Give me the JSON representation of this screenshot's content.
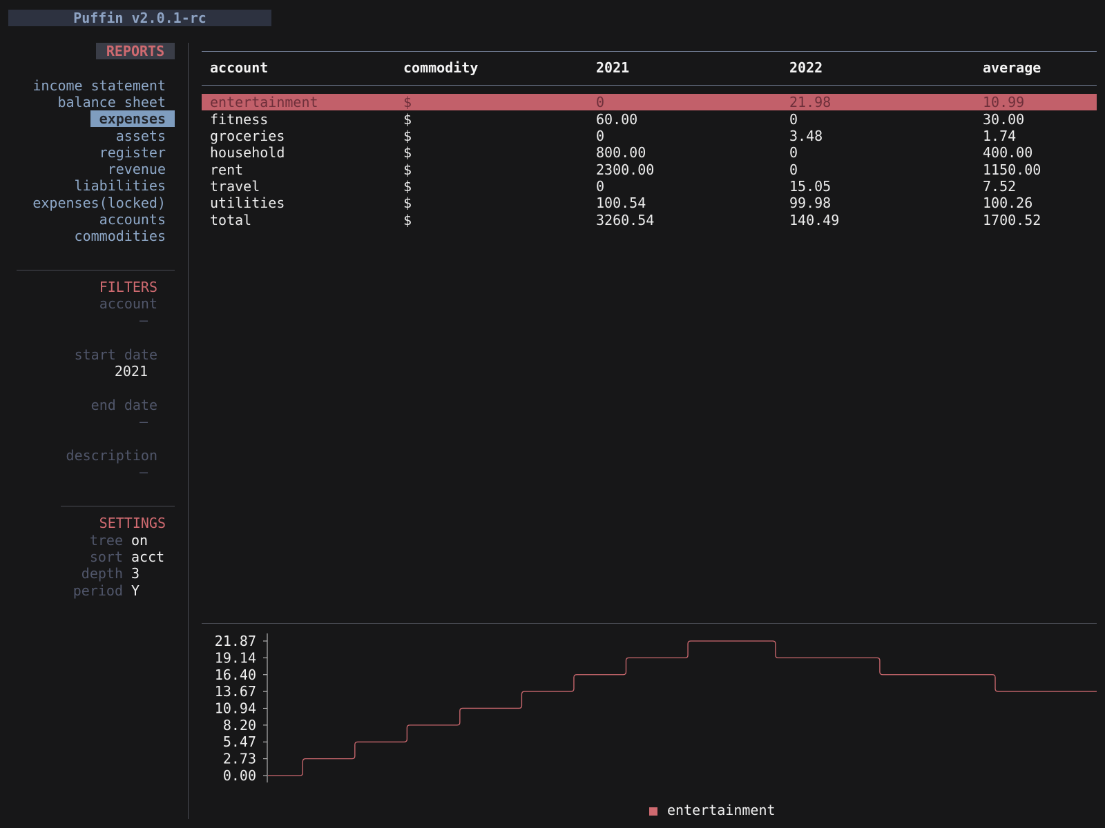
{
  "app": {
    "title": "Puffin v2.0.1-rc"
  },
  "sidebar": {
    "reports_header": "REPORTS",
    "reports": [
      {
        "label": "income statement",
        "active": false
      },
      {
        "label": "balance sheet",
        "active": false
      },
      {
        "label": "expenses",
        "active": true
      },
      {
        "label": "assets",
        "active": false
      },
      {
        "label": "register",
        "active": false
      },
      {
        "label": "revenue",
        "active": false
      },
      {
        "label": "liabilities",
        "active": false
      },
      {
        "label": "expenses(locked)",
        "active": false
      },
      {
        "label": "accounts",
        "active": false
      },
      {
        "label": "commodities",
        "active": false
      }
    ],
    "filters_header": "FILTERS",
    "filters": {
      "account": {
        "label": "account",
        "value": "–"
      },
      "start_date": {
        "label": "start date",
        "value": "2021"
      },
      "end_date": {
        "label": "end date",
        "value": "–"
      },
      "description": {
        "label": "description",
        "value": "–"
      }
    },
    "settings_header": "SETTINGS",
    "settings": {
      "tree": {
        "label": "tree",
        "value": "on"
      },
      "sort": {
        "label": "sort",
        "value": "acct"
      },
      "depth": {
        "label": "depth",
        "value": "3"
      },
      "period": {
        "label": "period",
        "value": "Y"
      }
    }
  },
  "table": {
    "columns": [
      "account",
      "commodity",
      "2021",
      "2022",
      "average"
    ],
    "rows": [
      [
        "entertainment",
        "$",
        "0",
        "21.98",
        "10.99"
      ],
      [
        "fitness",
        "$",
        "60.00",
        "0",
        "30.00"
      ],
      [
        "groceries",
        "$",
        "0",
        "3.48",
        "1.74"
      ],
      [
        "household",
        "$",
        "800.00",
        "0",
        "400.00"
      ],
      [
        "rent",
        "$",
        "2300.00",
        "0",
        "1150.00"
      ],
      [
        "travel",
        "$",
        "0",
        "15.05",
        "7.52"
      ],
      [
        "utilities",
        "$",
        "100.54",
        "99.98",
        "100.26"
      ],
      [
        "total",
        "$",
        "3260.54",
        "140.49",
        "1700.52"
      ]
    ],
    "selected_row": 0
  },
  "colors": {
    "accent": "#cf6a70",
    "nav": "#8ea8c8",
    "dim": "#50566a",
    "background": "#171718"
  },
  "chart_data": {
    "type": "line",
    "step": true,
    "yticks": [
      "21.87",
      "19.14",
      "16.40",
      "13.67",
      "10.94",
      "8.20",
      "5.47",
      "2.73",
      "0.00"
    ],
    "ylim": [
      0,
      21.87
    ],
    "series": [
      {
        "name": "entertainment",
        "color": "#cf6a70",
        "values": [
          0.0,
          2.73,
          5.47,
          8.2,
          10.94,
          13.67,
          16.4,
          19.14,
          21.87,
          19.14,
          16.4,
          13.67
        ]
      }
    ],
    "legend": "bottom-center"
  }
}
